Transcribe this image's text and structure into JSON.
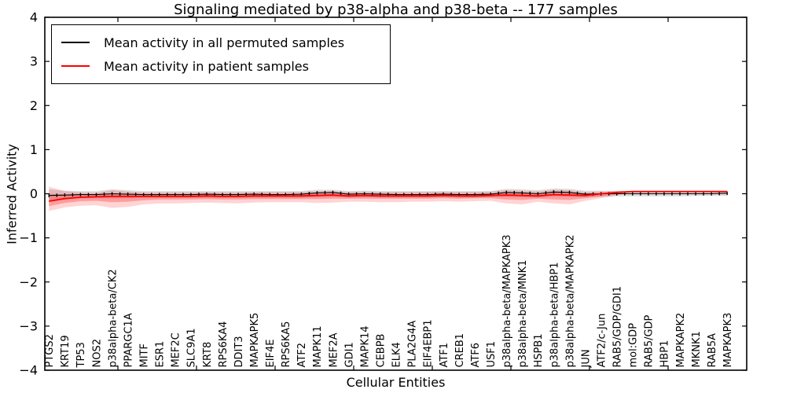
{
  "title": "Signaling mediated by p38-alpha and p38-beta -- 177 samples",
  "legend": [
    {
      "label": "Mean activity in all permuted samples",
      "color": "#000000"
    },
    {
      "label": "Mean activity in patient samples",
      "color": "#ff0000"
    }
  ],
  "colors": {
    "permuted_line": "#000000",
    "patient_line": "#ff0000",
    "permuted_band": "rgba(0,0,0,0.13)",
    "patient_band_outer": "rgba(255,0,0,0.17)",
    "patient_band_inner": "rgba(255,0,0,0.26)",
    "axis": "#000000"
  },
  "chart_data": {
    "type": "line",
    "title": "Signaling mediated by p38-alpha and p38-beta -- 177 samples",
    "xlabel": "Cellular Entities",
    "ylabel": "Inferred Activity",
    "ylim": [
      -4,
      4
    ],
    "yticks": [
      4,
      3,
      2,
      1,
      0,
      -1,
      -2,
      -3,
      -4
    ],
    "grid": false,
    "legend_position": "upper left",
    "categories": [
      "PTGS2",
      "KRT19",
      "TP53",
      "NOS2",
      "p38alpha-beta/CK2",
      "PPARGC1A",
      "MITF",
      "ESR1",
      "MEF2C",
      "SLC9A1",
      "KRT8",
      "RPS6KA4",
      "DDIT3",
      "MAPKAPK5",
      "EIF4E",
      "RPS6KA5",
      "ATF2",
      "MAPK11",
      "MEF2A",
      "GDI1",
      "MAPK14",
      "CEBPB",
      "ELK4",
      "PLA2G4A",
      "EIF4EBP1",
      "ATF1",
      "CREB1",
      "ATF6",
      "USF1",
      "p38alpha-beta/MAPKAPK3",
      "p38alpha-beta/MNK1",
      "HSPB1",
      "p38alpha-beta/HBP1",
      "p38alpha-beta/MAPKAPK2",
      "JUN",
      "ATF2/c-Jun",
      "RAB5/GDP/GDI1",
      "mol:GDP",
      "RAB5/GDP",
      "HBP1",
      "MAPKAPK2",
      "MKNK1",
      "RAB5A",
      "MAPKAPK3"
    ],
    "series": [
      {
        "name": "Mean activity in all permuted samples",
        "color": "#000000",
        "style": "solid-with-tick-markers",
        "values": [
          -0.04,
          -0.03,
          -0.02,
          -0.02,
          0.0,
          -0.01,
          -0.02,
          -0.02,
          -0.02,
          -0.02,
          -0.01,
          -0.02,
          -0.02,
          -0.01,
          -0.02,
          -0.02,
          -0.01,
          0.02,
          0.03,
          -0.01,
          0.0,
          -0.01,
          -0.02,
          -0.02,
          -0.02,
          -0.01,
          -0.02,
          -0.02,
          -0.01,
          0.03,
          0.02,
          0.0,
          0.04,
          0.03,
          -0.01,
          0.0,
          0.0,
          0.0,
          0.0,
          0.0,
          0.0,
          0.0,
          0.0,
          0.01
        ]
      },
      {
        "name": "Mean activity in patient samples",
        "color": "#ff0000",
        "style": "solid",
        "values": [
          -0.17,
          -0.11,
          -0.08,
          -0.07,
          -0.06,
          -0.06,
          -0.06,
          -0.06,
          -0.06,
          -0.06,
          -0.05,
          -0.06,
          -0.06,
          -0.05,
          -0.05,
          -0.05,
          -0.05,
          -0.04,
          -0.03,
          -0.05,
          -0.04,
          -0.05,
          -0.05,
          -0.05,
          -0.05,
          -0.04,
          -0.05,
          -0.05,
          -0.04,
          -0.03,
          -0.04,
          -0.05,
          -0.02,
          -0.03,
          -0.04,
          0.0,
          0.03,
          0.05,
          0.05,
          0.05,
          0.05,
          0.05,
          0.05,
          0.05
        ]
      }
    ],
    "bands": [
      {
        "name": "permuted-range",
        "color": "rgba(0,0,0,0.13)",
        "upper": [
          0.1,
          0.07,
          0.06,
          0.06,
          0.1,
          0.08,
          0.06,
          0.06,
          0.06,
          0.06,
          0.06,
          0.06,
          0.06,
          0.06,
          0.06,
          0.06,
          0.06,
          0.09,
          0.09,
          0.06,
          0.07,
          0.06,
          0.06,
          0.06,
          0.06,
          0.06,
          0.06,
          0.06,
          0.06,
          0.11,
          0.1,
          0.08,
          0.12,
          0.11,
          0.07,
          0.07,
          0.07,
          0.06,
          0.06,
          0.06,
          0.06,
          0.05,
          0.05,
          0.06
        ],
        "lower": [
          -0.16,
          -0.12,
          -0.1,
          -0.1,
          -0.11,
          -0.1,
          -0.09,
          -0.09,
          -0.09,
          -0.09,
          -0.09,
          -0.09,
          -0.09,
          -0.09,
          -0.09,
          -0.09,
          -0.09,
          -0.08,
          -0.07,
          -0.09,
          -0.08,
          -0.09,
          -0.09,
          -0.09,
          -0.09,
          -0.08,
          -0.09,
          -0.09,
          -0.08,
          -0.07,
          -0.08,
          -0.09,
          -0.06,
          -0.07,
          -0.08,
          -0.07,
          -0.06,
          -0.06,
          -0.06,
          -0.06,
          -0.06,
          -0.05,
          -0.05,
          -0.05
        ]
      },
      {
        "name": "patient-range-outer",
        "color": "rgba(255,0,0,0.17)",
        "upper": [
          0.16,
          0.06,
          0.03,
          0.02,
          0.08,
          0.05,
          0.03,
          0.03,
          0.03,
          0.03,
          0.04,
          0.03,
          0.03,
          0.04,
          0.04,
          0.04,
          0.04,
          0.06,
          0.06,
          0.04,
          0.05,
          0.04,
          0.04,
          0.04,
          0.04,
          0.05,
          0.04,
          0.04,
          0.05,
          0.08,
          0.07,
          0.05,
          0.09,
          0.08,
          0.04,
          0.05,
          0.06,
          0.05,
          0.05,
          0.05,
          0.05,
          0.05,
          0.05,
          0.05
        ],
        "lower": [
          -0.39,
          -0.31,
          -0.27,
          -0.26,
          -0.32,
          -0.3,
          -0.24,
          -0.22,
          -0.22,
          -0.21,
          -0.2,
          -0.21,
          -0.22,
          -0.2,
          -0.19,
          -0.19,
          -0.19,
          -0.21,
          -0.2,
          -0.18,
          -0.18,
          -0.19,
          -0.19,
          -0.18,
          -0.18,
          -0.17,
          -0.18,
          -0.17,
          -0.16,
          -0.22,
          -0.24,
          -0.18,
          -0.22,
          -0.24,
          -0.16,
          -0.1,
          -0.04,
          0.05,
          0.05,
          0.05,
          0.05,
          0.05,
          0.05,
          0.05
        ]
      },
      {
        "name": "patient-range-inner",
        "color": "rgba(255,0,0,0.26)",
        "upper": [
          0.0,
          -0.02,
          -0.03,
          -0.03,
          0.0,
          -0.01,
          -0.02,
          -0.02,
          -0.02,
          -0.02,
          -0.01,
          -0.02,
          -0.02,
          -0.01,
          -0.01,
          -0.01,
          -0.01,
          0.0,
          0.01,
          -0.01,
          0.0,
          -0.01,
          -0.01,
          -0.01,
          -0.01,
          0.0,
          -0.01,
          -0.01,
          0.0,
          0.02,
          0.01,
          0.0,
          0.03,
          0.02,
          0.0,
          0.02,
          0.04,
          0.05,
          0.05,
          0.05,
          0.05,
          0.05,
          0.05,
          0.05
        ],
        "lower": [
          -0.28,
          -0.21,
          -0.17,
          -0.16,
          -0.19,
          -0.18,
          -0.15,
          -0.13,
          -0.13,
          -0.13,
          -0.12,
          -0.13,
          -0.13,
          -0.12,
          -0.12,
          -0.12,
          -0.12,
          -0.12,
          -0.11,
          -0.11,
          -0.11,
          -0.11,
          -0.11,
          -0.11,
          -0.11,
          -0.1,
          -0.11,
          -0.1,
          -0.1,
          -0.13,
          -0.14,
          -0.11,
          -0.13,
          -0.14,
          -0.1,
          -0.06,
          -0.01,
          0.05,
          0.05,
          0.05,
          0.05,
          0.05,
          0.05,
          0.05
        ]
      }
    ]
  }
}
